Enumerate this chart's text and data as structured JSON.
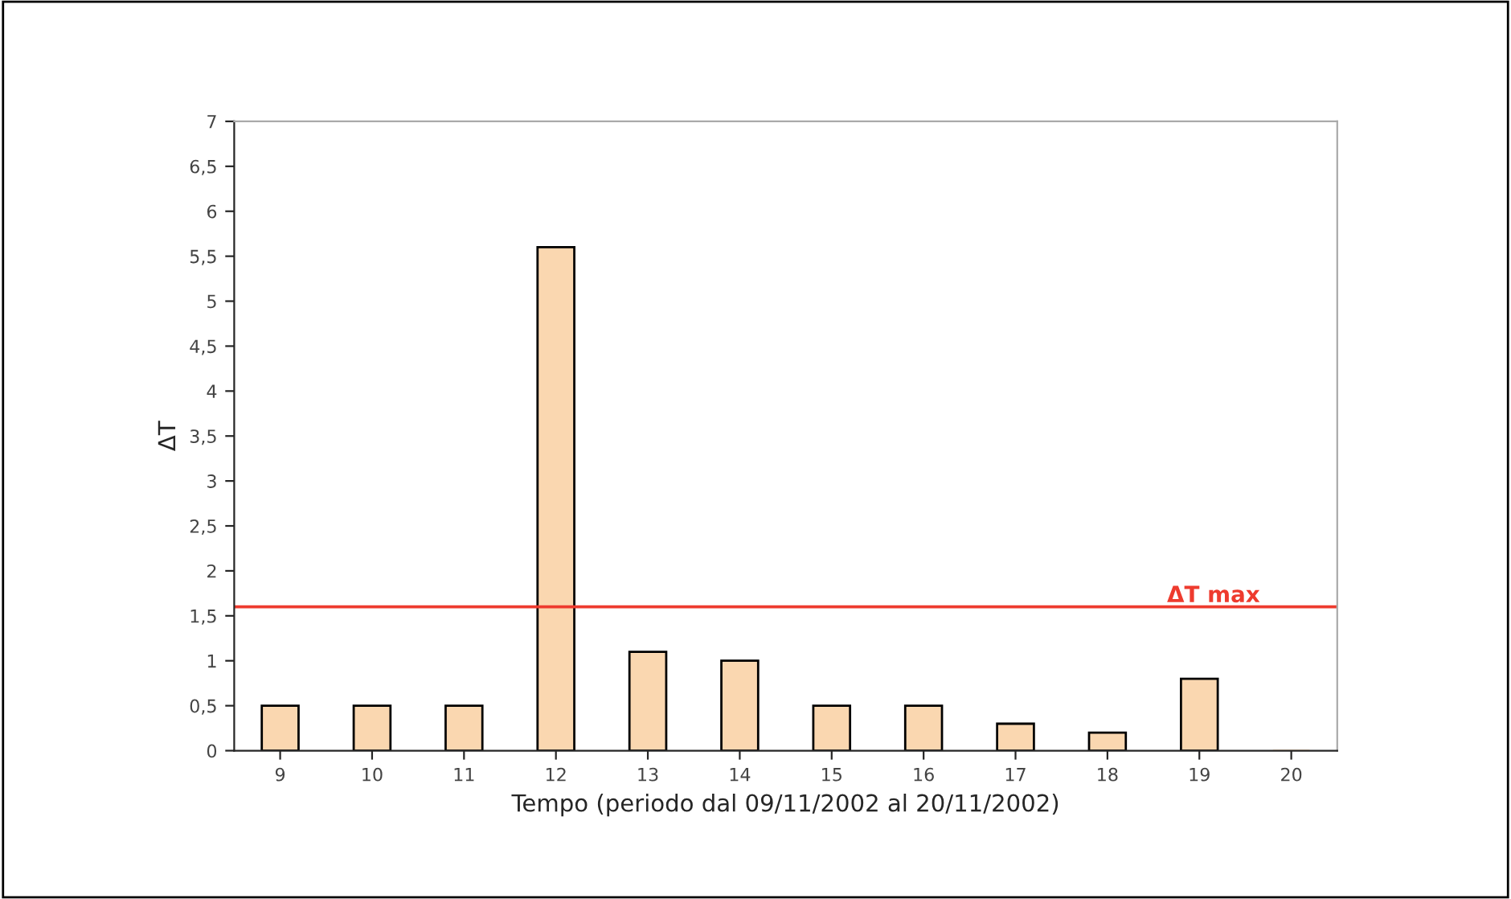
{
  "chart_data": {
    "type": "bar",
    "xlabel": "Tempo (periodo dal 09/11/2002 al 20/11/2002)",
    "ylabel": "ΔT",
    "categories": [
      "9",
      "10",
      "11",
      "12",
      "13",
      "14",
      "15",
      "16",
      "17",
      "18",
      "19",
      "20"
    ],
    "values": [
      0.5,
      0.5,
      0.5,
      5.6,
      1.1,
      1.0,
      0.5,
      0.5,
      0.3,
      0.2,
      0.8,
      0
    ],
    "color": "#fad7b0",
    "ylim": [
      0,
      7
    ],
    "yticks": [
      0,
      {
        "value": 0.5,
        "label": "0,5"
      },
      1,
      {
        "value": 1.5,
        "label": "1,5"
      },
      2,
      {
        "value": 2.5,
        "label": "2,5"
      },
      3,
      {
        "value": 3.5,
        "label": "3,5"
      },
      4,
      {
        "value": 4.5,
        "label": "4,5"
      },
      5,
      {
        "value": 5.5,
        "label": "5,5"
      },
      6,
      {
        "value": 6.5,
        "label": "6,5"
      },
      7
    ],
    "ref_lines": [
      {
        "axis": "y",
        "value": 1.6,
        "label": "ΔT max",
        "color": "#ee3b2e"
      }
    ],
    "grid": false,
    "legend": false
  }
}
